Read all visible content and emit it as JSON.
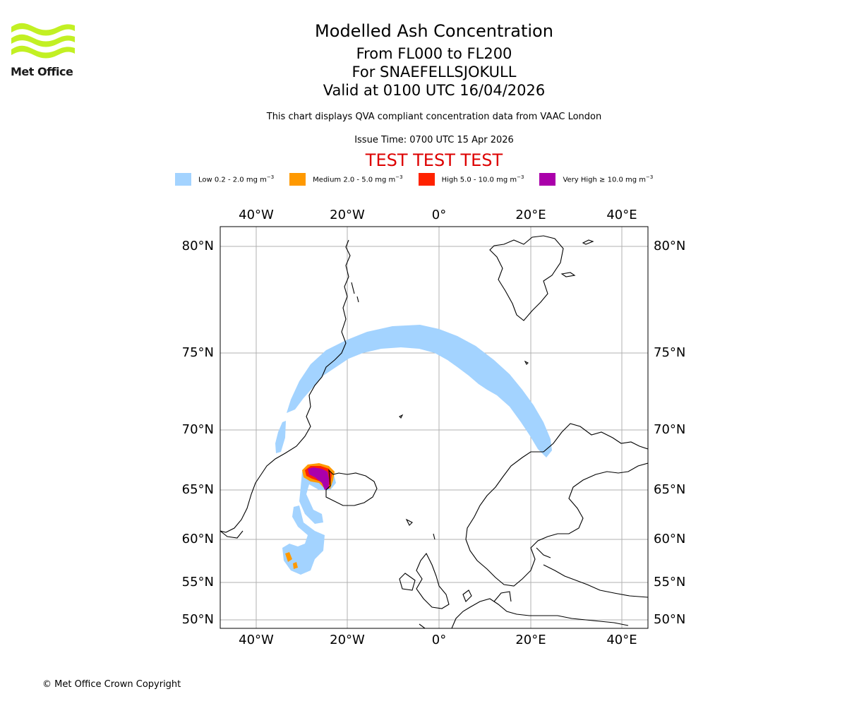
{
  "logo": {
    "text": "Met Office"
  },
  "title": {
    "line1": "Modelled Ash Concentration",
    "line2": "From FL000 to FL200",
    "line3": "For SNAEFELLSJOKULL",
    "line4": "Valid at 0100 UTC 16/04/2026",
    "subtitle": "This chart displays QVA compliant concentration data from VAAC London",
    "issue_time": "Issue Time: 0700 UTC 15 Apr 2026",
    "test_banner": "TEST TEST TEST"
  },
  "legend": [
    {
      "label": "Low 0.2 - 2.0 mg m",
      "exp": "−3",
      "color": "#a3d3ff"
    },
    {
      "label": "Medium 2.0 - 5.0 mg m",
      "exp": "−3",
      "color": "#ff9900"
    },
    {
      "label": "High 5.0 - 10.0 mg m",
      "exp": "−3",
      "color": "#ff2200"
    },
    {
      "label": "Very High  ≥  10.0 mg m",
      "exp": "−3",
      "color": "#aa00aa"
    }
  ],
  "axes": {
    "lon_labels": [
      "40°W",
      "20°W",
      "0°",
      "20°E",
      "40°E"
    ],
    "lat_labels": [
      "80°N",
      "75°N",
      "70°N",
      "65°N",
      "60°N",
      "55°N",
      "50°N"
    ]
  },
  "colors": {
    "low": "#a3d3ff",
    "medium": "#ff9900",
    "high": "#ff2200",
    "very_high": "#aa00aa",
    "grid": "#b0b0b0",
    "coast": "#000000"
  },
  "copyright": "© Met Office Crown Copyright"
}
